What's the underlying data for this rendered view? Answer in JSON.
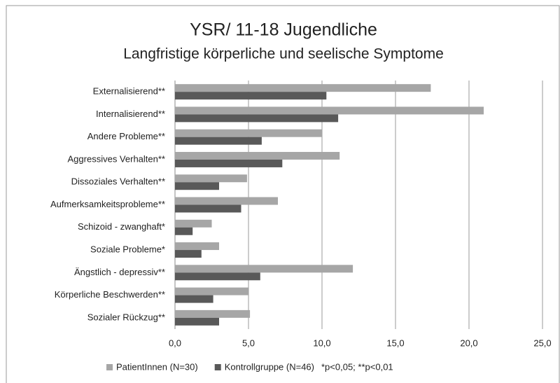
{
  "chart_data": {
    "type": "bar",
    "orientation": "horizontal",
    "title": "YSR/ 11-18  Jugendliche",
    "subtitle": "Langfristige körperliche und seelische Symptome",
    "categories": [
      "Externalisierend**",
      "Internalisierend**",
      "Andere Probleme**",
      "Aggressives Verhalten**",
      "Dissoziales Verhalten**",
      "Aufmerksamkeitsprobleme**",
      "Schizoid - zwanghaft*",
      "Soziale Probleme*",
      "Ängstlich - depressiv**",
      "Körperliche Beschwerden**",
      "Sozialer Rückzug**"
    ],
    "series": [
      {
        "name": "PatientInnen (N=30)",
        "color": "#a6a6a6",
        "values": [
          17.4,
          21.0,
          10.0,
          11.2,
          4.9,
          7.0,
          2.5,
          3.0,
          12.1,
          5.0,
          5.1
        ]
      },
      {
        "name": "Kontrollgruppe (N=46)",
        "color": "#595959",
        "values": [
          10.3,
          11.1,
          5.9,
          7.3,
          3.0,
          4.5,
          1.2,
          1.8,
          5.8,
          2.6,
          3.0
        ]
      }
    ],
    "note": "*p<0,05; **p<0,01",
    "xlim": [
      0,
      25
    ],
    "xticks": [
      {
        "value": 0,
        "label": "0,0"
      },
      {
        "value": 5,
        "label": "5,0"
      },
      {
        "value": 10,
        "label": "10,0"
      },
      {
        "value": 15,
        "label": "15,0"
      },
      {
        "value": 20,
        "label": "20,0"
      },
      {
        "value": 25,
        "label": "25,0"
      }
    ],
    "grid": true
  }
}
